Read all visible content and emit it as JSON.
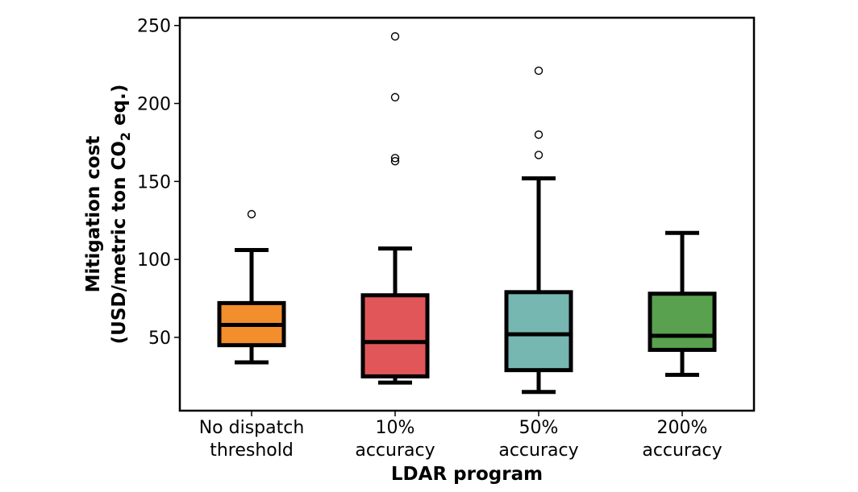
{
  "chart_data": {
    "type": "box",
    "title": "",
    "xlabel": "LDAR program",
    "ylabel": {
      "line1": "Mitigation cost",
      "line2_prefix": "(USD/metric ton CO",
      "line2_sub": "2",
      "line2_suffix": " eq.)"
    },
    "ylim": [
      3,
      255
    ],
    "yticks": [
      50,
      100,
      150,
      200,
      250
    ],
    "ytick_labels": [
      "50",
      "100",
      "150",
      "200",
      "250"
    ],
    "grid": false,
    "categories": [
      {
        "lines": [
          "No dispatch",
          "threshold"
        ]
      },
      {
        "lines": [
          "10%",
          "accuracy"
        ]
      },
      {
        "lines": [
          "50%",
          "accuracy"
        ]
      },
      {
        "lines": [
          "200%",
          "accuracy"
        ]
      }
    ],
    "boxes": [
      {
        "whisker_low": 34,
        "q1": 45,
        "median": 58,
        "q3": 72,
        "whisker_high": 106,
        "outliers": [
          129
        ],
        "color": "#f28e2b"
      },
      {
        "whisker_low": 21,
        "q1": 25,
        "median": 47,
        "q3": 77,
        "whisker_high": 107,
        "outliers": [
          163,
          165,
          204,
          243
        ],
        "color": "#e15759"
      },
      {
        "whisker_low": 15,
        "q1": 29,
        "median": 52,
        "q3": 79,
        "whisker_high": 152,
        "outliers": [
          167,
          180,
          221
        ],
        "color": "#76b7b2"
      },
      {
        "whisker_low": 26,
        "q1": 42,
        "median": 51,
        "q3": 78,
        "whisker_high": 117,
        "outliers": [],
        "color": "#59a14f"
      }
    ]
  }
}
